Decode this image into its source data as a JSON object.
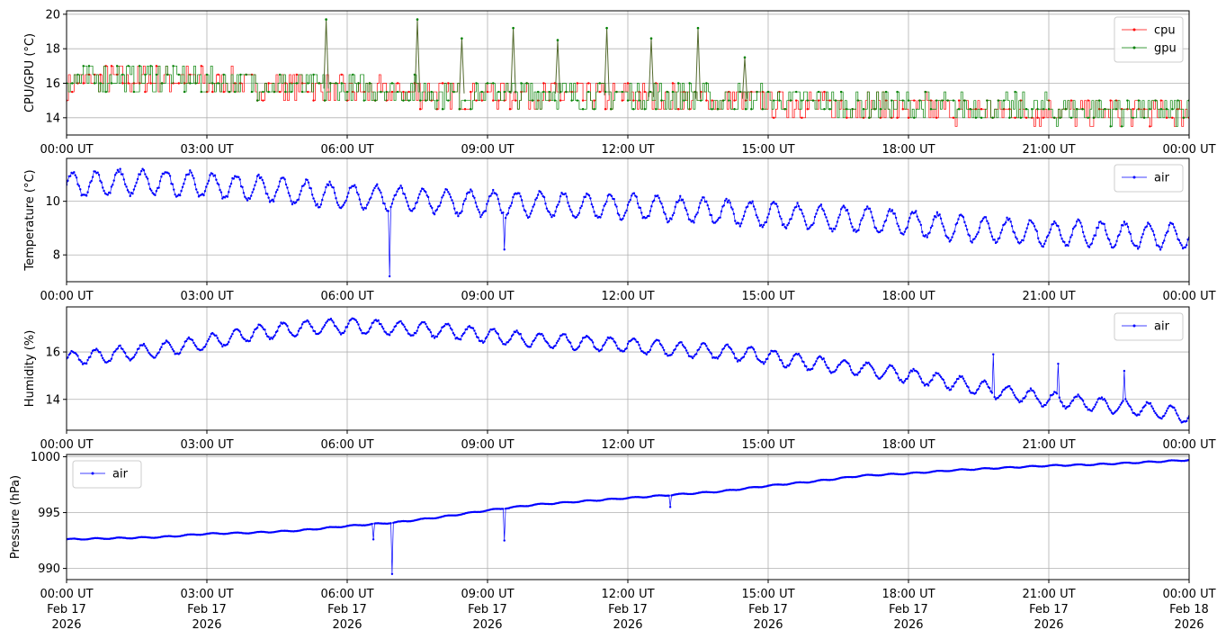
{
  "colors": {
    "cpu": "#ff0000",
    "gpu": "#008000",
    "air": "#0000ff",
    "grid": "#b0b0b0",
    "frame": "#000000"
  },
  "x_ticks": [
    {
      "time": "00:00 UT",
      "date": "Feb 17",
      "year": "2026"
    },
    {
      "time": "03:00 UT",
      "date": "Feb 17",
      "year": "2026"
    },
    {
      "time": "06:00 UT",
      "date": "Feb 17",
      "year": "2026"
    },
    {
      "time": "09:00 UT",
      "date": "Feb 17",
      "year": "2026"
    },
    {
      "time": "12:00 UT",
      "date": "Feb 17",
      "year": "2026"
    },
    {
      "time": "15:00 UT",
      "date": "Feb 17",
      "year": "2026"
    },
    {
      "time": "18:00 UT",
      "date": "Feb 17",
      "year": "2026"
    },
    {
      "time": "21:00 UT",
      "date": "Feb 17",
      "year": "2026"
    },
    {
      "time": "00:00 UT",
      "date": "Feb 18",
      "year": "2026"
    }
  ],
  "chart_data": [
    {
      "type": "line",
      "title": "",
      "xlabel": "",
      "ylabel": "CPU/GPU (°C)",
      "xlim": [
        "2026-02-17 00:00",
        "2026-02-18 00:00"
      ],
      "ylim": [
        13,
        20.2
      ],
      "yticks": [
        14,
        16,
        18,
        20
      ],
      "grid": true,
      "legend": "upper right",
      "series": [
        {
          "name": "cpu",
          "color": "#ff0000",
          "x_hours": [
            0,
            0.5,
            1,
            1.5,
            2,
            2.5,
            3,
            3.5,
            4,
            4.5,
            5,
            5.5,
            6,
            6.5,
            7,
            7.5,
            8,
            8.5,
            9,
            9.5,
            10,
            10.5,
            11,
            11.5,
            12,
            12.5,
            13,
            13.5,
            14,
            14.5,
            15,
            15.5,
            16,
            16.5,
            17,
            17.5,
            18,
            18.5,
            19,
            19.5,
            20,
            20.5,
            21,
            21.5,
            22,
            22.5,
            23,
            23.5,
            24
          ],
          "values": [
            16.0,
            16.2,
            16.3,
            16.1,
            16.3,
            16.2,
            16.0,
            16.0,
            15.9,
            15.8,
            15.8,
            15.6,
            15.5,
            15.5,
            15.4,
            15.4,
            15.4,
            15.3,
            15.4,
            15.3,
            15.3,
            15.3,
            15.2,
            15.2,
            15.2,
            15.1,
            15.1,
            15.0,
            15.0,
            15.0,
            14.9,
            14.8,
            14.8,
            14.7,
            14.7,
            14.6,
            14.6,
            14.5,
            14.5,
            14.5,
            14.4,
            14.4,
            14.4,
            14.3,
            14.3,
            14.3,
            14.3,
            14.3,
            14.2
          ]
        },
        {
          "name": "gpu",
          "color": "#008000",
          "x_hours": [
            0,
            0.5,
            1,
            1.5,
            2,
            2.5,
            3,
            3.5,
            4,
            4.5,
            5,
            5.5,
            6,
            6.5,
            7,
            7.5,
            8,
            8.5,
            9,
            9.5,
            10,
            10.5,
            11,
            11.5,
            12,
            12.5,
            13,
            13.5,
            14,
            14.5,
            15,
            15.5,
            16,
            16.5,
            17,
            17.5,
            18,
            18.5,
            19,
            19.5,
            20,
            20.5,
            21,
            21.5,
            22,
            22.5,
            23,
            23.5,
            24
          ],
          "values": [
            16.1,
            16.3,
            16.4,
            16.2,
            16.4,
            16.3,
            16.1,
            16.1,
            16.0,
            15.9,
            15.9,
            15.7,
            15.6,
            15.6,
            15.5,
            15.5,
            15.5,
            15.4,
            15.5,
            15.4,
            15.4,
            15.4,
            15.3,
            15.3,
            15.3,
            15.2,
            15.2,
            15.1,
            15.1,
            15.1,
            15.0,
            14.9,
            14.9,
            14.8,
            14.8,
            14.7,
            14.7,
            14.6,
            14.6,
            14.6,
            14.5,
            14.5,
            14.5,
            14.4,
            14.4,
            14.4,
            14.4,
            14.4,
            14.3
          ]
        },
        {
          "name": "",
          "color": "#008000",
          "role": "spikes",
          "x_hours": [
            5.55,
            7.5,
            8.45,
            9.55,
            10.5,
            11.55,
            12.5,
            13.5,
            14.5
          ],
          "values": [
            19.7,
            19.7,
            18.6,
            19.2,
            18.5,
            19.2,
            18.6,
            19.2,
            17.5
          ]
        }
      ]
    },
    {
      "type": "line",
      "title": "",
      "xlabel": "",
      "ylabel": "Temperature (°C)",
      "xlim": [
        "2026-02-17 00:00",
        "2026-02-18 00:00"
      ],
      "ylim": [
        7.0,
        11.6
      ],
      "yticks": [
        8,
        10
      ],
      "grid": true,
      "legend": "upper right",
      "series": [
        {
          "name": "air",
          "color": "#0000ff",
          "x_hours": [
            0,
            1,
            2,
            3,
            4,
            5,
            6,
            7,
            8,
            9,
            10,
            11,
            12,
            13,
            14,
            15,
            16,
            17,
            18,
            19,
            20,
            21,
            22,
            23,
            24
          ],
          "values": [
            10.6,
            10.7,
            10.7,
            10.6,
            10.5,
            10.3,
            10.2,
            10.1,
            10.0,
            9.9,
            9.9,
            9.8,
            9.8,
            9.7,
            9.6,
            9.5,
            9.4,
            9.3,
            9.2,
            9.0,
            8.9,
            8.8,
            8.8,
            8.7,
            8.7
          ],
          "amplitude": 0.45,
          "outliers": [
            {
              "x_hours": 6.9,
              "value": 7.2
            },
            {
              "x_hours": 9.35,
              "value": 8.2
            }
          ]
        }
      ]
    },
    {
      "type": "line",
      "title": "",
      "xlabel": "",
      "ylabel": "Humidity (%)",
      "xlim": [
        "2026-02-17 00:00",
        "2026-02-18 00:00"
      ],
      "ylim": [
        12.7,
        17.9
      ],
      "yticks": [
        14,
        16
      ],
      "grid": true,
      "legend": "upper right",
      "series": [
        {
          "name": "air",
          "color": "#0000ff",
          "x_hours": [
            0,
            1,
            2,
            3,
            4,
            5,
            6,
            7,
            8,
            9,
            10,
            11,
            12,
            13,
            14,
            15,
            16,
            17,
            18,
            19,
            20,
            21,
            22,
            23,
            24
          ],
          "values": [
            15.7,
            15.9,
            16.1,
            16.4,
            16.8,
            17.0,
            17.1,
            17.0,
            16.9,
            16.7,
            16.5,
            16.4,
            16.3,
            16.1,
            16.0,
            15.8,
            15.5,
            15.3,
            15.0,
            14.7,
            14.3,
            14.0,
            13.8,
            13.6,
            13.3
          ],
          "amplitude": 0.3,
          "outliers": [
            {
              "x_hours": 19.8,
              "value": 15.9
            },
            {
              "x_hours": 21.2,
              "value": 15.5
            },
            {
              "x_hours": 22.6,
              "value": 15.2
            }
          ]
        }
      ]
    },
    {
      "type": "line",
      "title": "",
      "xlabel": "",
      "ylabel": "Pressure (hPa)",
      "xlim": [
        "2026-02-17 00:00",
        "2026-02-18 00:00"
      ],
      "ylim": [
        989,
        1000.2
      ],
      "yticks": [
        990,
        995,
        1000
      ],
      "grid": true,
      "legend": "upper left",
      "series": [
        {
          "name": "air",
          "color": "#0000ff",
          "x_hours": [
            0,
            1,
            2,
            3,
            4,
            5,
            6,
            7,
            8,
            9,
            10,
            11,
            12,
            13,
            14,
            15,
            16,
            17,
            18,
            19,
            20,
            21,
            22,
            23,
            24
          ],
          "values": [
            992.6,
            992.7,
            992.8,
            993.1,
            993.2,
            993.4,
            993.8,
            994.1,
            994.6,
            995.2,
            995.7,
            996.0,
            996.3,
            996.6,
            996.9,
            997.4,
            997.8,
            998.3,
            998.5,
            998.8,
            999.0,
            999.2,
            999.3,
            999.5,
            999.7
          ],
          "amplitude": 0.05,
          "outliers": [
            {
              "x_hours": 6.95,
              "value": 989.5
            },
            {
              "x_hours": 9.35,
              "value": 992.5
            },
            {
              "x_hours": 6.55,
              "value": 992.6
            },
            {
              "x_hours": 12.9,
              "value": 995.5
            }
          ]
        }
      ]
    }
  ]
}
